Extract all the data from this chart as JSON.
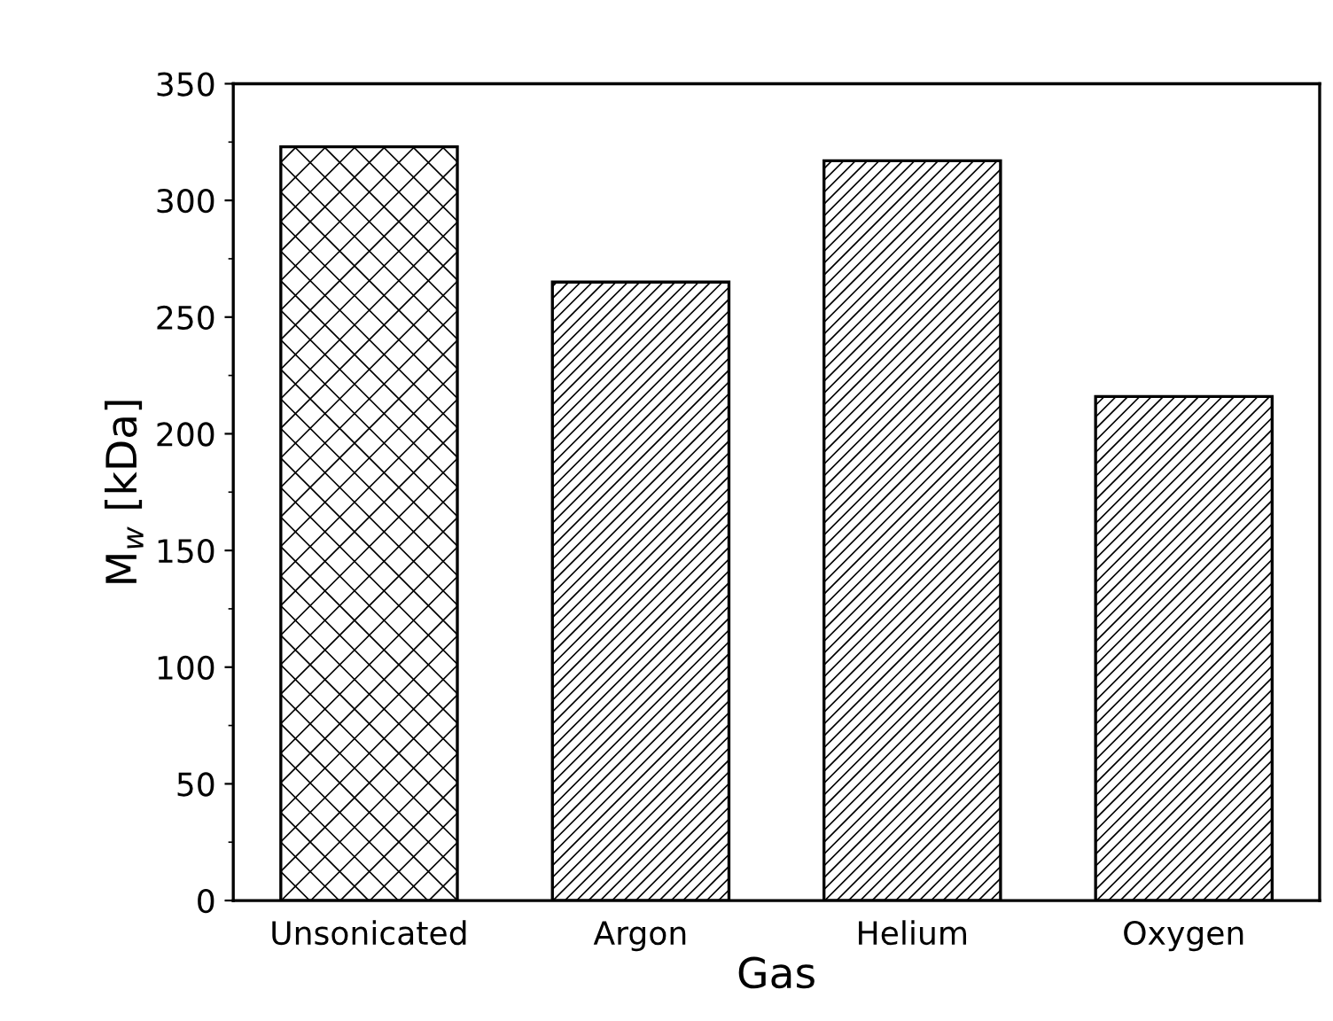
{
  "chart_data": {
    "type": "bar",
    "xlabel": "Gas",
    "ylabel": "M$_{w}$ [kDa]",
    "categories": [
      "Unsonicated",
      "Argon",
      "Helium",
      "Oxygen"
    ],
    "values": [
      323,
      265,
      317,
      216
    ],
    "color": "#000000",
    "ylim": [
      0,
      350
    ],
    "yticks": [
      0,
      50,
      100,
      150,
      200,
      250,
      300,
      350
    ],
    "grid": false
  }
}
